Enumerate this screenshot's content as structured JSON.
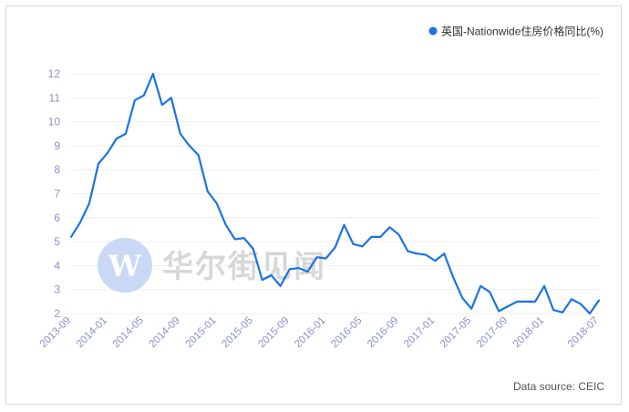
{
  "chart_data": {
    "type": "line",
    "legend_position": "top-right",
    "grid": true,
    "series": [
      {
        "name": "英国-Nationwide住房价格同比(%)",
        "color": "#1a73e8",
        "values": [
          5.2,
          5.8,
          6.6,
          8.25,
          8.7,
          9.3,
          9.5,
          10.9,
          11.1,
          12.0,
          10.7,
          11.0,
          9.5,
          9.0,
          8.6,
          7.1,
          6.6,
          5.7,
          5.1,
          5.15,
          4.7,
          3.4,
          3.6,
          3.15,
          3.85,
          3.9,
          3.75,
          4.35,
          4.3,
          4.75,
          5.7,
          4.9,
          4.8,
          5.2,
          5.2,
          5.6,
          5.3,
          4.6,
          4.5,
          4.45,
          4.2,
          4.5,
          3.5,
          2.65,
          2.2,
          3.15,
          2.9,
          2.1,
          2.3,
          2.5,
          2.5,
          2.5,
          3.15,
          2.15,
          2.05,
          2.6,
          2.4,
          2.0,
          2.55
        ]
      }
    ],
    "x_tick_labels": [
      "2013-09",
      "2014-01",
      "2014-05",
      "2014-09",
      "2015-01",
      "2015-05",
      "2015-09",
      "2016-01",
      "2016-05",
      "2016-09",
      "2017-01",
      "2017-05",
      "2017-09",
      "2018-01",
      "2018-07"
    ],
    "x_tick_indices": [
      0,
      4,
      8,
      12,
      16,
      20,
      24,
      28,
      32,
      36,
      40,
      44,
      48,
      52,
      58
    ],
    "y_ticks": [
      2,
      3,
      4,
      5,
      6,
      7,
      8,
      9,
      10,
      11,
      12
    ],
    "ylim": [
      2,
      12
    ]
  },
  "source_note": "Data source: CEIC",
  "watermark": {
    "text": "华尔街见闻"
  },
  "colors": {
    "line": "#1a73e8",
    "axis_labels": "#8a8fd0",
    "grid": "#eeeeee",
    "watermark_circle": "#c9d9f5"
  }
}
